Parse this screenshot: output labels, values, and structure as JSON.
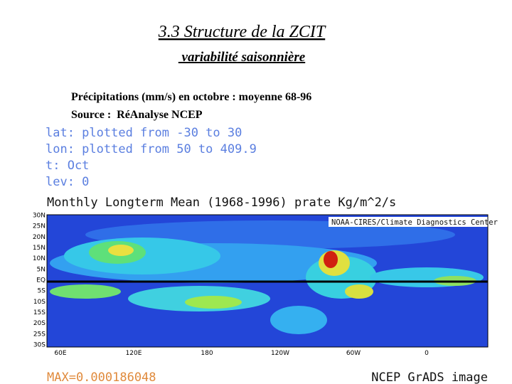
{
  "header": {
    "title": "3.3 Structure de la ZCIT",
    "subtitle": " variabilité saisonnière"
  },
  "description": [
    "Précipitations (mm/s) en octobre : moyenne 68-96",
    "Source :  RéAnalyse NCEP"
  ],
  "plot_info": [
    "lat: plotted from -30 to 30",
    "lon: plotted from 50 to 409.9",
    "t: Oct",
    "lev: 0"
  ],
  "map": {
    "title": "Monthly Longterm Mean (1968-1996) prate Kg/m^2/s",
    "credit": "NOAA-CIRES/Climate Diagnostics Center",
    "lat_labels": [
      "30N",
      "25N",
      "20N",
      "15N",
      "10N",
      "5N",
      "EQ",
      "5S",
      "10S",
      "15S",
      "20S",
      "25S",
      "30S"
    ],
    "lon_labels": [
      "60E",
      "120E",
      "180",
      "120W",
      "60W",
      "0"
    ]
  },
  "footer": {
    "max": "MAX=0.000186048",
    "source": "NCEP GrADS image"
  }
}
